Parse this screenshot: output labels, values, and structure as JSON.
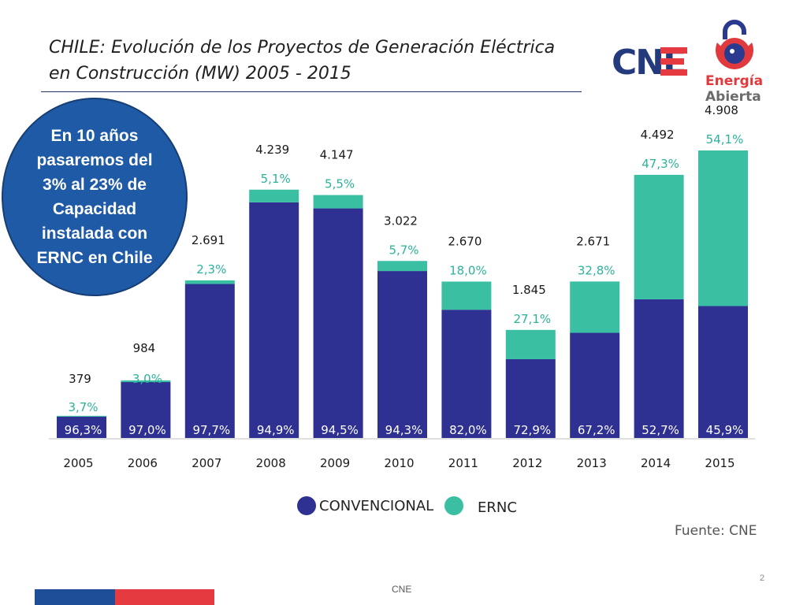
{
  "header": {
    "title_line1": "CHILE: Evolución de los Proyectos de Generación Eléctrica",
    "title_line2": "en Construcción (MW) 2005 - 2015",
    "cne_logo_text": "CNE",
    "ea_logo_line1": "Energía",
    "ea_logo_line2": "Abierta"
  },
  "callout": {
    "text": "En 10 años pasaremos del 3% al 23% de Capacidad instalada con ERNC en Chile"
  },
  "colors": {
    "convencional": "#2e3191",
    "ernc": "#3bbfa3",
    "ernc_label": "#2bb39a",
    "label_dark": "#1a1a1a"
  },
  "chart_data": {
    "type": "bar",
    "stacked": true,
    "categories": [
      "2005",
      "2006",
      "2007",
      "2008",
      "2009",
      "2010",
      "2011",
      "2012",
      "2013",
      "2014",
      "2015"
    ],
    "totals": [
      379,
      984,
      2691,
      4239,
      4147,
      3022,
      2670,
      1845,
      2671,
      4492,
      4908
    ],
    "total_labels": [
      "379",
      "984",
      "2.691",
      "4.239",
      "4.147",
      "3.022",
      "2.670",
      "1.845",
      "2.671",
      "4.492",
      "4.908"
    ],
    "series": [
      {
        "name": "CONVENCIONAL",
        "share_pct": [
          96.3,
          97.0,
          97.7,
          94.9,
          94.5,
          94.3,
          82.0,
          72.9,
          67.2,
          52.7,
          45.9
        ],
        "labels": [
          "96,3%",
          "97,0%",
          "97,7%",
          "94,9%",
          "94,5%",
          "94,3%",
          "82,0%",
          "72,9%",
          "67,2%",
          "52,7%",
          "45,9%"
        ]
      },
      {
        "name": "ERNC",
        "share_pct": [
          3.7,
          3.0,
          2.3,
          5.1,
          5.5,
          5.7,
          18.0,
          27.1,
          32.8,
          47.3,
          54.1
        ],
        "labels": [
          "3,7%",
          "3,0%",
          "2,3%",
          "5,1%",
          "5,5%",
          "5,7%",
          "18,0%",
          "27,1%",
          "32,8%",
          "47,3%",
          "54,1%"
        ]
      }
    ],
    "ylim": [
      0,
      5000
    ],
    "title": "CHILE: Evolución de los Proyectos de Generación Eléctrica en Construcción (MW) 2005 - 2015",
    "legend_position": "bottom-center"
  },
  "legend": {
    "item1": "CONVENCIONAL",
    "item2": "ERNC"
  },
  "source": "Fuente: CNE",
  "footer": {
    "page_number": "2",
    "org": "CNE"
  }
}
